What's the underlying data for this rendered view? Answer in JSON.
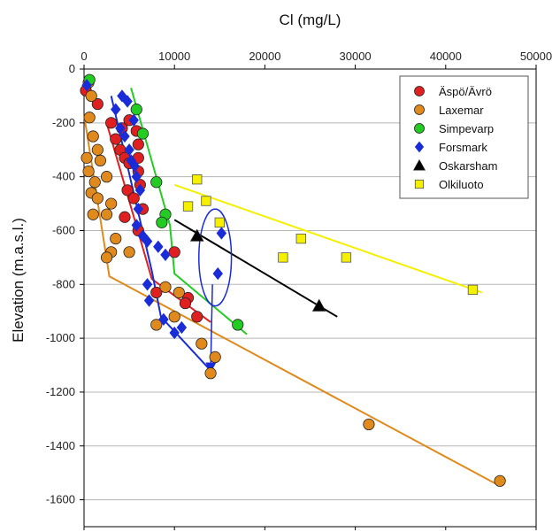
{
  "chart_data": {
    "type": "scatter",
    "title": "",
    "xlabel": "Cl (mg/L)",
    "ylabel": "Elevation (m.a.s.l.)",
    "x_axis_position": "top",
    "xlim": [
      0,
      50000
    ],
    "ylim": [
      -1700,
      0
    ],
    "xticks": [
      0,
      10000,
      20000,
      30000,
      40000,
      50000
    ],
    "yticks": [
      0,
      -200,
      -400,
      -600,
      -800,
      -1000,
      -1200,
      -1400,
      -1600
    ],
    "xtick_labels": [
      "0",
      "10000",
      "20000",
      "30000",
      "40000",
      "50000"
    ],
    "ytick_labels": [
      "0",
      "-200",
      "-400",
      "-600",
      "-800",
      "-1000",
      "-1200",
      "-1400",
      "-1600"
    ],
    "grid": "horizontal",
    "legend_position": "top-right",
    "series": [
      {
        "name": "Äspö/Ävrö",
        "marker": "circle",
        "color": "#e02020",
        "points": [
          [
            200,
            -80
          ],
          [
            1500,
            -130
          ],
          [
            3000,
            -200
          ],
          [
            3500,
            -260
          ],
          [
            4000,
            -300
          ],
          [
            4500,
            -330
          ],
          [
            5000,
            -350
          ],
          [
            6000,
            -380
          ],
          [
            4800,
            -450
          ],
          [
            5500,
            -480
          ],
          [
            4500,
            -550
          ],
          [
            6000,
            -330
          ],
          [
            6000,
            -280
          ],
          [
            5800,
            -230
          ],
          [
            5000,
            -190
          ],
          [
            6200,
            -430
          ],
          [
            6500,
            -520
          ],
          [
            10000,
            -680
          ],
          [
            11500,
            -850
          ],
          [
            11200,
            -870
          ],
          [
            12500,
            -920
          ],
          [
            8000,
            -830
          ],
          [
            6000,
            -600
          ],
          [
            4200,
            -220
          ]
        ]
      },
      {
        "name": "Laxemar",
        "marker": "circle",
        "color": "#e08a1e",
        "points": [
          [
            500,
            -50
          ],
          [
            800,
            -100
          ],
          [
            600,
            -180
          ],
          [
            1000,
            -250
          ],
          [
            1500,
            -300
          ],
          [
            300,
            -330
          ],
          [
            1800,
            -340
          ],
          [
            500,
            -380
          ],
          [
            1200,
            -420
          ],
          [
            2500,
            -400
          ],
          [
            800,
            -460
          ],
          [
            1500,
            -480
          ],
          [
            3000,
            -500
          ],
          [
            1000,
            -540
          ],
          [
            2500,
            -540
          ],
          [
            3500,
            -630
          ],
          [
            3000,
            -680
          ],
          [
            2500,
            -700
          ],
          [
            5000,
            -680
          ],
          [
            9000,
            -810
          ],
          [
            10500,
            -830
          ],
          [
            10000,
            -920
          ],
          [
            8000,
            -950
          ],
          [
            13000,
            -1020
          ],
          [
            14500,
            -1070
          ],
          [
            14000,
            -1130
          ],
          [
            31500,
            -1320
          ],
          [
            46000,
            -1530
          ]
        ]
      },
      {
        "name": "Simpevarp",
        "marker": "circle",
        "color": "#22cc22",
        "points": [
          [
            600,
            -40
          ],
          [
            5800,
            -150
          ],
          [
            6500,
            -240
          ],
          [
            8000,
            -420
          ],
          [
            9000,
            -540
          ],
          [
            8600,
            -570
          ],
          [
            17000,
            -950
          ]
        ]
      },
      {
        "name": "Forsmark",
        "marker": "diamond",
        "color": "#1a2cd8",
        "points": [
          [
            300,
            -60
          ],
          [
            4200,
            -100
          ],
          [
            4800,
            -120
          ],
          [
            3500,
            -150
          ],
          [
            5500,
            -190
          ],
          [
            4000,
            -220
          ],
          [
            4500,
            -250
          ],
          [
            5000,
            -300
          ],
          [
            5200,
            -340
          ],
          [
            5600,
            -360
          ],
          [
            5800,
            -400
          ],
          [
            6200,
            -450
          ],
          [
            6000,
            -520
          ],
          [
            5800,
            -580
          ],
          [
            6500,
            -620
          ],
          [
            7000,
            -640
          ],
          [
            8200,
            -660
          ],
          [
            9000,
            -690
          ],
          [
            7000,
            -800
          ],
          [
            7200,
            -860
          ],
          [
            8800,
            -930
          ],
          [
            10000,
            -980
          ],
          [
            10800,
            -960
          ],
          [
            15200,
            -610
          ],
          [
            14800,
            -760
          ]
        ]
      },
      {
        "name": "Oskarsham",
        "marker": "triangle",
        "color": "#000000",
        "points": [
          [
            12500,
            -620
          ],
          [
            26000,
            -880
          ]
        ]
      },
      {
        "name": "Olkiluoto",
        "marker": "square",
        "color": "#f4f000",
        "points": [
          [
            12500,
            -410
          ],
          [
            13500,
            -490
          ],
          [
            11500,
            -510
          ],
          [
            15000,
            -570
          ],
          [
            24000,
            -630
          ],
          [
            22000,
            -700
          ],
          [
            29000,
            -700
          ],
          [
            43000,
            -820
          ]
        ]
      }
    ],
    "trend_lines": [
      {
        "series": "Äspö/Ävrö",
        "color": "#e02020",
        "points": [
          [
            2500,
            -200
          ],
          [
            7500,
            -780
          ],
          [
            14000,
            -940
          ]
        ]
      },
      {
        "series": "Laxemar",
        "color": "#e08a1e",
        "points": [
          [
            0,
            -170
          ],
          [
            2800,
            -770
          ],
          [
            45500,
            -1540
          ]
        ]
      },
      {
        "series": "Simpevarp",
        "color": "#22cc22",
        "points": [
          [
            5200,
            -70
          ],
          [
            9500,
            -580
          ],
          [
            10000,
            -760
          ],
          [
            18000,
            -985
          ]
        ]
      },
      {
        "series": "Forsmark",
        "color": "#1a2cd8",
        "points": [
          [
            3000,
            -100
          ],
          [
            7500,
            -750
          ],
          [
            8500,
            -920
          ],
          [
            14000,
            -1120
          ]
        ]
      },
      {
        "series": "Oskarsham",
        "color": "#000000",
        "points": [
          [
            10000,
            -560
          ],
          [
            28000,
            -920
          ]
        ]
      },
      {
        "series": "Olkiluoto",
        "color": "#f4f000",
        "points": [
          [
            10000,
            -430
          ],
          [
            44000,
            -830
          ]
        ]
      }
    ],
    "annotations": [
      {
        "type": "ellipse",
        "color": "#1a2cd8",
        "center": [
          14500,
          -700
        ],
        "rx": 1800,
        "ry": 180
      },
      {
        "type": "arrow",
        "color": "#1a2cd8",
        "from": [
          14200,
          -800
        ],
        "to": [
          14000,
          -1120
        ]
      }
    ]
  }
}
